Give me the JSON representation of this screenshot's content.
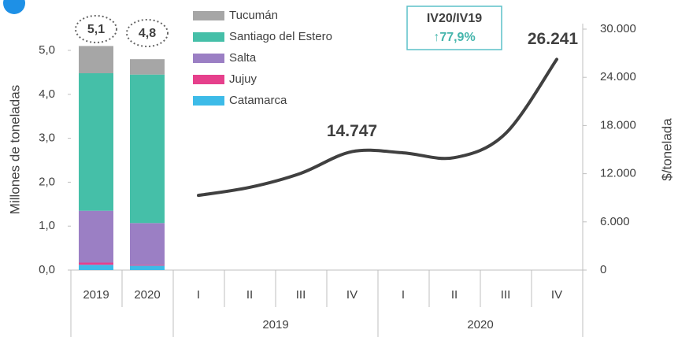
{
  "chart_data": {
    "type": "bar_line",
    "bar_categories": [
      "2019",
      "2020"
    ],
    "total_labels": [
      "5,1",
      "4,8"
    ],
    "series": [
      {
        "name": "Catamarca",
        "color": "#3dbbe8",
        "values": [
          0.12,
          0.1
        ]
      },
      {
        "name": "Jujuy",
        "color": "#e6408c",
        "values": [
          0.05,
          0.02
        ]
      },
      {
        "name": "Salta",
        "color": "#9b7fc4",
        "values": [
          1.18,
          0.95
        ]
      },
      {
        "name": "Santiago del Estero",
        "color": "#45bfa8",
        "values": [
          3.13,
          3.38
        ]
      },
      {
        "name": "Tucumán",
        "color": "#a6a6a6",
        "values": [
          0.62,
          0.35
        ]
      }
    ],
    "ylabel": "Millones de toneladas",
    "ylim": [
      0,
      5.5
    ],
    "yticks": [
      {
        "value": 0,
        "label": "0,0"
      },
      {
        "value": 1,
        "label": "1,0"
      },
      {
        "value": 2,
        "label": "2,0"
      },
      {
        "value": 3,
        "label": "3,0"
      },
      {
        "value": 4,
        "label": "4,0"
      },
      {
        "value": 5,
        "label": "5,0"
      }
    ],
    "line": {
      "color": "#404040",
      "categories": [
        "I",
        "II",
        "III",
        "IV",
        "I",
        "II",
        "III",
        "IV"
      ],
      "values": [
        9300,
        10300,
        12050,
        14747,
        14600,
        14000,
        17000,
        26241
      ],
      "value_labels": [
        null,
        null,
        null,
        "14.747",
        null,
        null,
        null,
        "26.241"
      ]
    },
    "groups": [
      "2019",
      "2020"
    ],
    "y2label": "$/tonelada",
    "y2lim": [
      0,
      30000
    ],
    "y2ticks": [
      0,
      {
        "value": 6000,
        "label": "6.000"
      },
      {
        "value": 12000,
        "label": "12.000"
      },
      {
        "value": 18000,
        "label": "18.000"
      },
      {
        "value": 24000,
        "label": "24.000"
      },
      {
        "value": 30000,
        "label": "30.000"
      }
    ],
    "annotation": {
      "title": "IV20/IV19",
      "text": "↑77,9%"
    }
  }
}
